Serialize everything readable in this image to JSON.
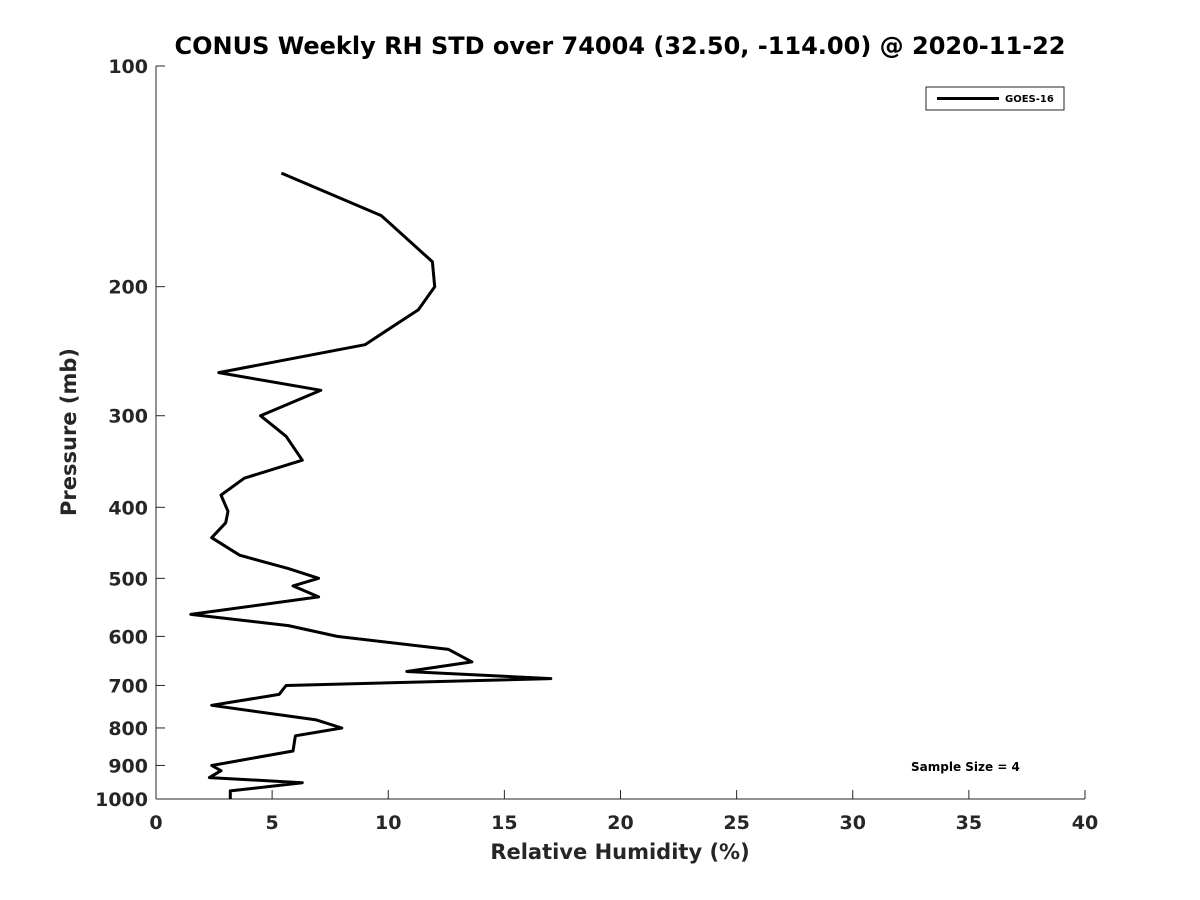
{
  "chart_data": {
    "type": "line",
    "title": "CONUS Weekly RH STD over 74004 (32.50, -114.00) @ 2020-11-22",
    "xlabel": "Relative Humidity (%)",
    "ylabel": "Pressure (mb)",
    "xlim": [
      0,
      40
    ],
    "ylim": [
      100,
      1000
    ],
    "y_scale": "log",
    "y_reversed": true,
    "x_ticks": [
      "0",
      "5",
      "10",
      "15",
      "20",
      "25",
      "30",
      "35",
      "40"
    ],
    "y_ticks": [
      "100",
      "200",
      "300",
      "400",
      "500",
      "600",
      "700",
      "800",
      "900",
      "1000"
    ],
    "grid": false,
    "legend_position": "top-right",
    "annotation": "Sample Size = 4",
    "series": [
      {
        "name": "GOES-16",
        "color": "#000000",
        "points": [
          [
            5.4,
            140
          ],
          [
            9.7,
            160
          ],
          [
            11.9,
            185
          ],
          [
            12.0,
            200
          ],
          [
            11.3,
            215
          ],
          [
            9.0,
            240
          ],
          [
            2.7,
            262
          ],
          [
            7.1,
            277
          ],
          [
            4.5,
            300
          ],
          [
            5.6,
            320
          ],
          [
            6.3,
            345
          ],
          [
            3.8,
            365
          ],
          [
            2.8,
            385
          ],
          [
            3.1,
            405
          ],
          [
            3.0,
            420
          ],
          [
            2.4,
            440
          ],
          [
            3.6,
            465
          ],
          [
            5.7,
            485
          ],
          [
            7.0,
            500
          ],
          [
            5.9,
            512
          ],
          [
            7.0,
            530
          ],
          [
            1.5,
            560
          ],
          [
            5.7,
            580
          ],
          [
            7.8,
            600
          ],
          [
            12.6,
            625
          ],
          [
            13.6,
            650
          ],
          [
            10.8,
            670
          ],
          [
            17.0,
            685
          ],
          [
            5.6,
            700
          ],
          [
            5.3,
            720
          ],
          [
            2.4,
            745
          ],
          [
            6.9,
            780
          ],
          [
            8.0,
            800
          ],
          [
            6.0,
            820
          ],
          [
            5.9,
            860
          ],
          [
            2.4,
            900
          ],
          [
            2.8,
            915
          ],
          [
            2.3,
            935
          ],
          [
            6.3,
            950
          ],
          [
            3.2,
            975
          ],
          [
            3.2,
            1000
          ]
        ]
      }
    ]
  }
}
